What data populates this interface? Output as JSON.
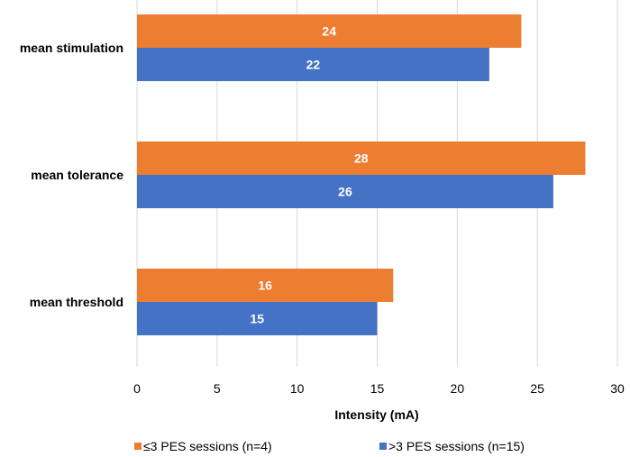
{
  "chart_data": {
    "type": "bar",
    "orientation": "horizontal",
    "categories": [
      "mean stimulation",
      "mean tolerance",
      "mean threshold"
    ],
    "series": [
      {
        "name": "≤3 PES sessions (n=4)",
        "values": [
          24,
          28,
          16
        ],
        "color": "#ED7D31"
      },
      {
        "name": ">3 PES sessions (n=15)",
        "values": [
          22,
          26,
          15
        ],
        "color": "#4472C4"
      }
    ],
    "xlabel": "Intensity (mA)",
    "ylabel": "",
    "xlim": [
      0,
      30
    ],
    "x_ticks": [
      "0",
      "5",
      "10",
      "15",
      "20",
      "25",
      "30"
    ],
    "grid": "vertical",
    "legend_position": "bottom",
    "data_labels": true
  }
}
